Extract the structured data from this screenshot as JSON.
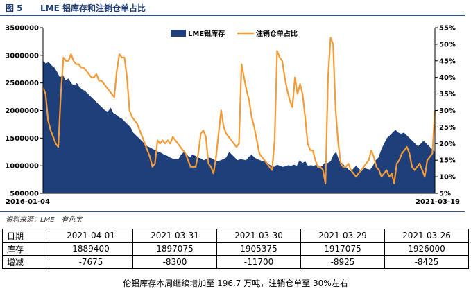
{
  "header": {
    "fig_label": "图 5",
    "title": "LME 铝库存和注销仓单占比"
  },
  "chart_data": {
    "type": "area+line",
    "x_start_label": "2016-01-04",
    "x_end_label": "2021-03-19",
    "y_left": {
      "ticks": [
        "3500000",
        "3000000",
        "2500000",
        "2000000",
        "1500000",
        "1000000",
        "500000"
      ],
      "range": [
        500000,
        3500000
      ]
    },
    "y_right": {
      "ticks": [
        "55%",
        "50%",
        "45%",
        "40%",
        "35%",
        "30%",
        "25%",
        "20%",
        "15%",
        "10%",
        "5%"
      ],
      "range": [
        5,
        55
      ]
    },
    "grid": false,
    "legend_position": "top",
    "series": [
      {
        "name": "LME铝库存",
        "kind": "area",
        "axis": "left",
        "color": "#1f3f7a",
        "values": [
          2900000,
          2850000,
          2880000,
          2820000,
          2780000,
          2700000,
          2600000,
          2650000,
          2550000,
          2580000,
          2500000,
          2450000,
          2500000,
          2420000,
          2380000,
          2350000,
          2300000,
          2250000,
          2200000,
          2150000,
          2100000,
          2050000,
          2000000,
          1980000,
          2050000,
          1950000,
          1920000,
          1880000,
          1850000,
          1800000,
          1750000,
          1700000,
          1600000,
          1550000,
          1500000,
          1450000,
          1400000,
          1350000,
          1330000,
          1300000,
          1280000,
          1250000,
          1230000,
          1200000,
          1180000,
          1150000,
          1130000,
          1120000,
          1120000,
          1200000,
          1250000,
          1200000,
          1150000,
          1200000,
          1180000,
          1150000,
          1130000,
          1100000,
          1120000,
          1150000,
          1130000,
          1100000,
          1080000,
          1100000,
          1120000,
          1150000,
          1250000,
          1200000,
          1150000,
          1100000,
          1120000,
          1110000,
          1100000,
          1160000,
          1200000,
          1150000,
          1120000,
          1100000,
          1080000,
          1090000,
          1030000,
          1000000,
          980000,
          1020000,
          1000000,
          980000,
          990000,
          1010000,
          1000000,
          1020000,
          1000000,
          1100000,
          1050000,
          1080000,
          1000000,
          1010000,
          1000000,
          1020000,
          1000000,
          990000,
          1060000,
          1050000,
          1080000,
          1200000,
          1250000,
          1100000,
          1050000,
          1000000,
          950000,
          900000,
          940000,
          1000000,
          950000,
          900000,
          960000,
          940000,
          930000,
          1000000,
          1100000,
          1150000,
          1300000,
          1400000,
          1500000,
          1550000,
          1600000,
          1650000,
          1600000,
          1580000,
          1600000,
          1550000,
          1500000,
          1450000,
          1400000,
          1350000,
          1400000,
          1450000,
          1400000,
          1350000,
          1300000,
          1250000
        ]
      },
      {
        "name": "注销仓单占比",
        "kind": "line",
        "axis": "right",
        "color": "#f59a35",
        "values": [
          37,
          35,
          27,
          24,
          22,
          20,
          19,
          35,
          46,
          45,
          45,
          47,
          45,
          44,
          44,
          43,
          43,
          42,
          41,
          40,
          40,
          41,
          39,
          39,
          38,
          37,
          36,
          35,
          34,
          42,
          47,
          46,
          46,
          40,
          30,
          28,
          27,
          26,
          24,
          22,
          20,
          18,
          16,
          13,
          14,
          21,
          20,
          21,
          20,
          21,
          20,
          22,
          21,
          20,
          19,
          18,
          17,
          15,
          13,
          13,
          13,
          17,
          23,
          24,
          22,
          14,
          13,
          11,
          16,
          23,
          30,
          25,
          23,
          22,
          21,
          20,
          19,
          20,
          44,
          40,
          36,
          33,
          28,
          25,
          21,
          17,
          16,
          15,
          14,
          13,
          12,
          21,
          48,
          46,
          45,
          40,
          36,
          33,
          31,
          40,
          35,
          38,
          35,
          28,
          20,
          18,
          18,
          15,
          13,
          13,
          12,
          8,
          40,
          52,
          50,
          30,
          20,
          14,
          13,
          13,
          14,
          12,
          11,
          10,
          11,
          12,
          13,
          14,
          15,
          18,
          16,
          13,
          12,
          10,
          11,
          12,
          10,
          11,
          8,
          14,
          15,
          17,
          18,
          19,
          17,
          13,
          12,
          13,
          14,
          12,
          10,
          15,
          16,
          17,
          30
        ]
      }
    ]
  },
  "source": "资料来源：LME　有色宝",
  "table": {
    "header": [
      "日期",
      "2021-04-01",
      "2021-03-31",
      "2021-03-30",
      "2021-03-29",
      "2021-03-26"
    ],
    "rows": [
      [
        "库存",
        "1889400",
        "1897075",
        "1905375",
        "1917075",
        "1926000"
      ],
      [
        "增减",
        "-7675",
        "-8300",
        "-11700",
        "-8925",
        "-8425"
      ]
    ]
  },
  "caption": "伦铝库存本周继续增加至 196.7 万吨，注销仓单至 30%左右"
}
